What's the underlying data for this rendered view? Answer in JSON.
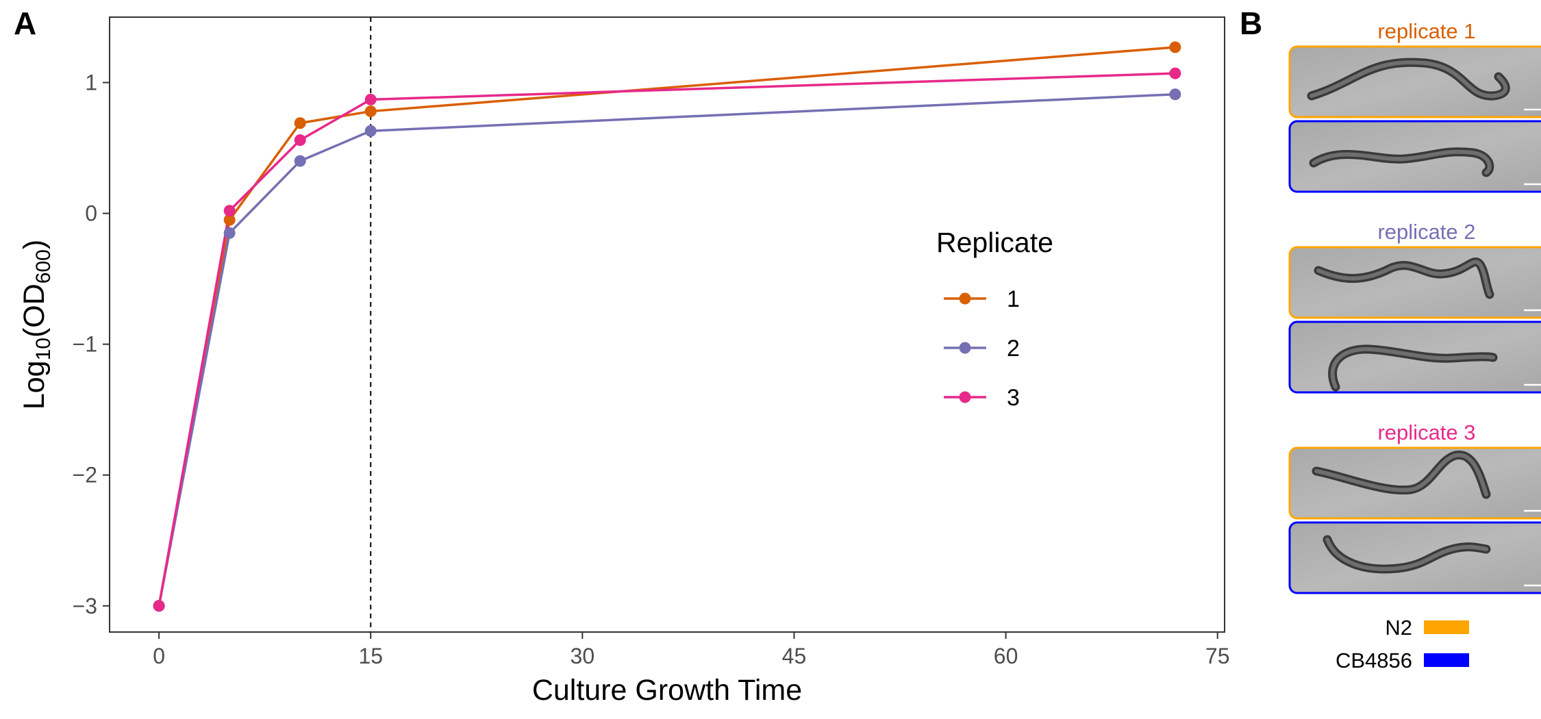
{
  "figure": {
    "panel_a_label": "A",
    "panel_b_label": "B"
  },
  "chart_data": {
    "type": "line",
    "xlabel": "Culture Growth Time",
    "ylabel": "Log10(OD600)",
    "ylabel_parts": {
      "main": "Log",
      "sub1": "10",
      "paren_open": "(",
      "od": "OD",
      "sub2": "600",
      "paren_close": ")"
    },
    "xlim": [
      -3.5,
      75.5
    ],
    "ylim": [
      -3.2,
      1.5
    ],
    "x_ticks": [
      0,
      15,
      30,
      45,
      60,
      75
    ],
    "y_ticks": [
      1,
      0,
      -1,
      -2,
      -3
    ],
    "y_tick_labels": [
      "1",
      "0",
      "−1",
      "−2",
      "−3"
    ],
    "vline_x": 15,
    "legend_title": "Replicate",
    "legend_position": "right-center",
    "grid": false,
    "series": [
      {
        "name": "1",
        "color": "#D95F02",
        "x": [
          0,
          5,
          10,
          15,
          72
        ],
        "y": [
          -3.0,
          -0.05,
          0.69,
          0.78,
          1.27
        ]
      },
      {
        "name": "2",
        "color": "#7570B3",
        "x": [
          0,
          5,
          10,
          15,
          72
        ],
        "y": [
          -3.0,
          -0.15,
          0.4,
          0.63,
          0.91
        ]
      },
      {
        "name": "3",
        "color": "#E7298A",
        "x": [
          0,
          5,
          10,
          15,
          72
        ],
        "y": [
          -3.0,
          0.02,
          0.56,
          0.87,
          1.07
        ]
      }
    ]
  },
  "panel_b": {
    "replicates": [
      {
        "title": "replicate 1",
        "color": "#D95F02"
      },
      {
        "title": "replicate 2",
        "color": "#7570B3"
      },
      {
        "title": "replicate 3",
        "color": "#E7298A"
      }
    ],
    "strain_legend": [
      {
        "label": "N2",
        "color": "#FFA500"
      },
      {
        "label": "CB4856",
        "color": "#0000FF"
      }
    ]
  }
}
